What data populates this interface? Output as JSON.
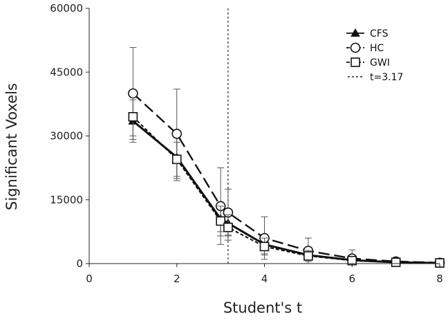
{
  "chart_data": {
    "type": "line",
    "xlabel": "Student's t",
    "ylabel": "Significant Voxels",
    "xlim": [
      0,
      8
    ],
    "ylim": [
      0,
      60000
    ],
    "xticks": [
      0,
      2,
      4,
      6,
      8
    ],
    "yticks": [
      0,
      15000,
      30000,
      45000,
      60000
    ],
    "x": [
      1,
      2,
      3,
      3.17,
      4,
      5,
      6,
      7,
      8
    ],
    "series": [
      {
        "name": "CFS",
        "marker": "triangle",
        "dash": "solid",
        "color": "#111111",
        "values": [
          33500,
          25000,
          10500,
          9500,
          4500,
          2000,
          800,
          300,
          150
        ],
        "errors": [
          5000,
          5500,
          3000,
          2800,
          2200,
          1200,
          600,
          300,
          200
        ]
      },
      {
        "name": "HC",
        "marker": "circle",
        "dash": "long-dash",
        "color": "#111111",
        "values": [
          40000,
          30500,
          13500,
          12000,
          6000,
          3000,
          1200,
          500,
          200
        ],
        "errors": [
          10800,
          10500,
          9000,
          5500,
          5000,
          3000,
          2000,
          700,
          300
        ]
      },
      {
        "name": "GWI",
        "marker": "square",
        "dash": "short-dash",
        "color": "#111111",
        "values": [
          34500,
          24500,
          10000,
          8500,
          4000,
          1800,
          700,
          300,
          150
        ],
        "errors": [
          4500,
          4000,
          3500,
          3000,
          2000,
          1300,
          800,
          400,
          250
        ]
      }
    ],
    "threshold": {
      "name": "t=3.17",
      "x": 3.17,
      "style": "dotted"
    },
    "legend_position": "top-right",
    "grid": false
  }
}
